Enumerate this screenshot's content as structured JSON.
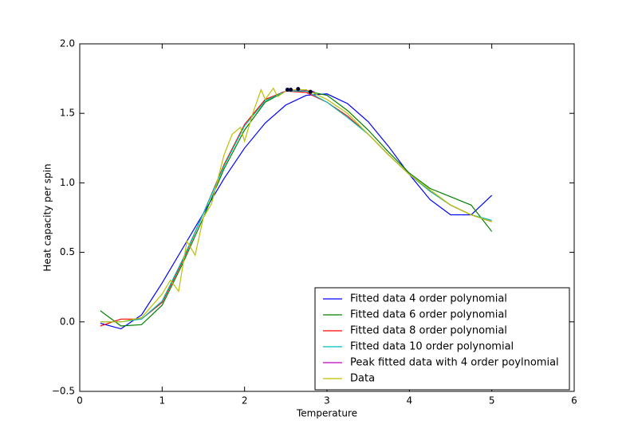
{
  "chart_data": {
    "type": "line",
    "xlabel": "Temperature",
    "ylabel": "Heat capacity per spin",
    "xlim": [
      0,
      6
    ],
    "ylim": [
      -0.5,
      2.0
    ],
    "xticks": [
      0,
      1,
      2,
      3,
      4,
      5,
      6
    ],
    "yticks": [
      {
        "value": -0.5,
        "label": "−0.5"
      },
      {
        "value": 0,
        "label": "0.0"
      },
      0.5,
      {
        "value": 1,
        "label": "1.0"
      },
      1.5,
      {
        "value": 2,
        "label": "2.0"
      }
    ],
    "legend": "lower right",
    "series": [
      {
        "name": "Fitted data 4 order polynomial",
        "color": "#0000ff",
        "x": [
          0.25,
          0.5,
          0.75,
          1,
          1.25,
          1.5,
          1.75,
          2,
          2.25,
          2.5,
          2.75,
          3,
          3.25,
          3.5,
          3.75,
          4,
          4.25,
          4.5,
          4.75,
          5
        ],
        "values": [
          -0.01,
          -0.05,
          0.05,
          0.28,
          0.53,
          0.78,
          1.03,
          1.25,
          1.43,
          1.56,
          1.63,
          1.64,
          1.57,
          1.44,
          1.26,
          1.06,
          0.88,
          0.77,
          0.77,
          0.91
        ]
      },
      {
        "name": "Fitted data 6 order polynomial",
        "color": "#008000",
        "x": [
          0.25,
          0.5,
          0.75,
          1,
          1.25,
          1.5,
          1.75,
          2,
          2.25,
          2.5,
          2.75,
          3,
          3.25,
          3.5,
          3.75,
          4,
          4.25,
          4.5,
          4.75,
          5
        ],
        "values": [
          0.08,
          -0.03,
          -0.02,
          0.12,
          0.42,
          0.75,
          1.1,
          1.38,
          1.58,
          1.66,
          1.66,
          1.63,
          1.52,
          1.38,
          1.22,
          1.07,
          0.96,
          0.9,
          0.84,
          0.65
        ]
      },
      {
        "name": "Fitted data 8 order polynomial",
        "color": "#ff0000",
        "x": [
          0.25,
          0.5,
          0.75,
          1,
          1.25,
          1.5,
          1.75,
          2,
          2.25,
          2.5,
          2.75,
          3,
          3.25,
          3.5,
          3.75,
          4,
          4.25,
          4.5,
          4.75,
          5
        ],
        "values": [
          -0.03,
          0.02,
          0.02,
          0.14,
          0.44,
          0.78,
          1.13,
          1.42,
          1.6,
          1.66,
          1.65,
          1.58,
          1.48,
          1.35,
          1.2,
          1.06,
          0.94,
          0.84,
          0.77,
          0.72
        ]
      },
      {
        "name": "Fitted data 10 order polynomial",
        "color": "#00bfbf",
        "x": [
          0.25,
          0.5,
          0.75,
          1,
          1.25,
          1.5,
          1.75,
          2,
          2.25,
          2.5,
          2.75,
          3,
          3.25,
          3.5,
          3.75,
          4,
          4.25,
          4.5,
          4.75,
          5
        ],
        "values": [
          0.0,
          0.0,
          0.02,
          0.15,
          0.45,
          0.78,
          1.12,
          1.41,
          1.59,
          1.66,
          1.66,
          1.58,
          1.47,
          1.35,
          1.2,
          1.06,
          0.94,
          0.84,
          0.77,
          0.73
        ]
      },
      {
        "name": "Peak fitted data with 4 order poylnomial",
        "color": "#bf00bf",
        "x": [
          2.45,
          2.55,
          2.65,
          2.75,
          2.85
        ],
        "values": [
          1.65,
          1.665,
          1.67,
          1.665,
          1.655
        ]
      },
      {
        "name": "Data",
        "color": "#bfbf00",
        "x": [
          0.25,
          0.5,
          0.75,
          1,
          1.1,
          1.2,
          1.3,
          1.4,
          1.5,
          1.6,
          1.75,
          1.85,
          1.95,
          2,
          2.1,
          2.2,
          2.25,
          2.35,
          2.4,
          2.5,
          2.6,
          2.75,
          3,
          3.25,
          3.5,
          3.75,
          4,
          4.25,
          4.5,
          4.75,
          5
        ],
        "values": [
          0.0,
          0.0,
          0.03,
          0.2,
          0.3,
          0.22,
          0.58,
          0.48,
          0.75,
          0.85,
          1.2,
          1.35,
          1.4,
          1.3,
          1.5,
          1.67,
          1.6,
          1.68,
          1.62,
          1.66,
          1.67,
          1.67,
          1.6,
          1.5,
          1.35,
          1.2,
          1.06,
          0.95,
          0.84,
          0.77,
          0.72
        ]
      }
    ],
    "peaks": {
      "color": "#000033",
      "x": [
        2.52,
        2.56,
        2.65,
        2.8
      ],
      "values": [
        1.67,
        1.67,
        1.675,
        1.655
      ]
    }
  }
}
